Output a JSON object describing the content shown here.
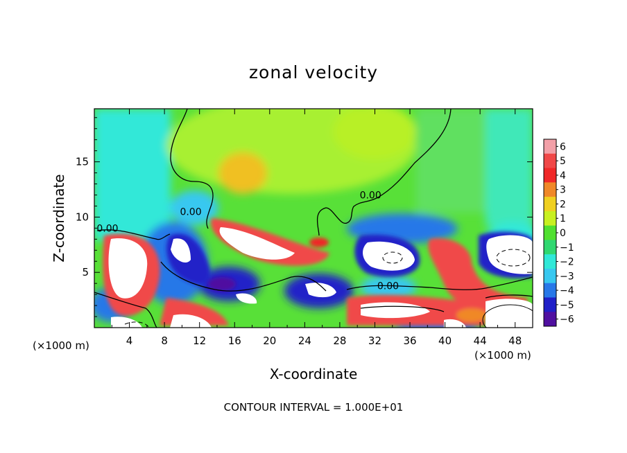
{
  "chart_data": {
    "type": "heatmap",
    "title": "zonal velocity",
    "xlabel": "X-coordinate",
    "ylabel": "Z-coordinate",
    "x_unit_left": "(×1000 m)",
    "x_unit_right": "(×1000 m)",
    "footer": "CONTOUR INTERVAL = 1.000E+01",
    "xlim": [
      0,
      50
    ],
    "ylim": [
      0,
      19.8
    ],
    "xticks": [
      4,
      8,
      12,
      16,
      20,
      24,
      28,
      32,
      36,
      40,
      44,
      48
    ],
    "yticks": [
      5,
      10,
      15
    ],
    "colorbar": {
      "ticks": [
        6,
        5,
        4,
        3,
        2,
        1,
        0,
        -1,
        -2,
        -3,
        -4,
        -5,
        -6
      ],
      "colors": [
        "#f2a0a8",
        "#f04848",
        "#f02828",
        "#f08828",
        "#f0d020",
        "#c8f020",
        "#50e030",
        "#30d870",
        "#30e8d8",
        "#38c8f0",
        "#2878e8",
        "#2020c8",
        "#5010a0"
      ]
    },
    "contour_labels": [
      {
        "text": "0.00",
        "x": 31.5,
        "z": 12.0
      },
      {
        "text": "0.00",
        "x": 11.0,
        "z": 10.5
      },
      {
        "text": "0.00",
        "x": 1.5,
        "z": 9.0
      },
      {
        "text": "0.00",
        "x": 33.5,
        "z": 3.8
      }
    ]
  }
}
